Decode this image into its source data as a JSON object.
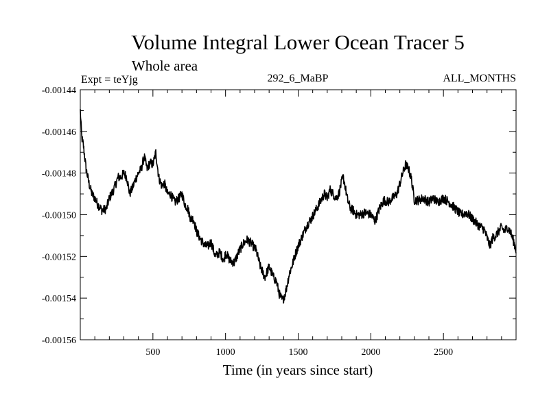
{
  "chart_data": {
    "type": "line",
    "title": "Volume Integral Lower Ocean Tracer 5",
    "subtitle": "Whole area",
    "header_left": "Expt = teYjg",
    "header_center": "292_6_MaBP",
    "header_right": "ALL_MONTHS",
    "xlabel": "Time (in years since start)",
    "ylabel": "",
    "xlim": [
      0,
      3000
    ],
    "ylim": [
      -0.00156,
      -0.00144
    ],
    "x_ticks": [
      500,
      1000,
      1500,
      2000,
      2500
    ],
    "x_tick_labels": [
      "500",
      "1000",
      "1500",
      "2000",
      "2500"
    ],
    "y_ticks": [
      -0.00144,
      -0.00146,
      -0.00148,
      -0.0015,
      -0.00152,
      -0.00154,
      -0.00156
    ],
    "y_tick_labels": [
      "-0.00144",
      "-0.00146",
      "-0.00148",
      "-0.00150",
      "-0.00152",
      "-0.00154",
      "-0.00156"
    ],
    "grid": false,
    "series": [
      {
        "name": "Volume Integral Lower Ocean Tracer 5",
        "color": "#000000",
        "x": [
          0,
          10,
          20,
          40,
          60,
          80,
          100,
          120,
          150,
          180,
          200,
          230,
          260,
          280,
          300,
          320,
          340,
          360,
          380,
          400,
          420,
          440,
          460,
          480,
          500,
          520,
          540,
          560,
          580,
          600,
          620,
          650,
          680,
          700,
          720,
          740,
          760,
          780,
          800,
          830,
          860,
          880,
          900,
          930,
          960,
          990,
          1000,
          1030,
          1060,
          1090,
          1120,
          1150,
          1180,
          1210,
          1240,
          1270,
          1300,
          1330,
          1350,
          1370,
          1390,
          1400,
          1410,
          1420,
          1440,
          1460,
          1480,
          1500,
          1530,
          1560,
          1590,
          1620,
          1650,
          1680,
          1700,
          1720,
          1740,
          1760,
          1780,
          1800,
          1810,
          1820,
          1840,
          1860,
          1880,
          1900,
          1930,
          1960,
          2000,
          2030,
          2060,
          2090,
          2120,
          2150,
          2180,
          2200,
          2220,
          2240,
          2260,
          2280,
          2300,
          2330,
          2360,
          2400,
          2430,
          2460,
          2500,
          2540,
          2580,
          2620,
          2660,
          2700,
          2740,
          2780,
          2800,
          2820,
          2840,
          2860,
          2880,
          2900,
          2920,
          2940,
          2960,
          2980,
          3000
        ],
        "y": [
          -0.00145,
          -0.001463,
          -0.001466,
          -0.001478,
          -0.001485,
          -0.00149,
          -0.001492,
          -0.001495,
          -0.001498,
          -0.001497,
          -0.001492,
          -0.001488,
          -0.001482,
          -0.001482,
          -0.00148,
          -0.001482,
          -0.00149,
          -0.001487,
          -0.001483,
          -0.00148,
          -0.001478,
          -0.001472,
          -0.001478,
          -0.001475,
          -0.001476,
          -0.00147,
          -0.001482,
          -0.001486,
          -0.001485,
          -0.00149,
          -0.00149,
          -0.001494,
          -0.001492,
          -0.00149,
          -0.001495,
          -0.001497,
          -0.001502,
          -0.001502,
          -0.001508,
          -0.001512,
          -0.001515,
          -0.001515,
          -0.001513,
          -0.00152,
          -0.001518,
          -0.001522,
          -0.001518,
          -0.001522,
          -0.001523,
          -0.001518,
          -0.001514,
          -0.001512,
          -0.001514,
          -0.001517,
          -0.001525,
          -0.00153,
          -0.001525,
          -0.00153,
          -0.001532,
          -0.001538,
          -0.001541,
          -0.00154,
          -0.001538,
          -0.001535,
          -0.001528,
          -0.001524,
          -0.001519,
          -0.001515,
          -0.00151,
          -0.001505,
          -0.001502,
          -0.001498,
          -0.001494,
          -0.00149,
          -0.001492,
          -0.001488,
          -0.00149,
          -0.001492,
          -0.00149,
          -0.001484,
          -0.001482,
          -0.001485,
          -0.001493,
          -0.001497,
          -0.001498,
          -0.0015,
          -0.0015,
          -0.001499,
          -0.0015,
          -0.001503,
          -0.001497,
          -0.001493,
          -0.001494,
          -0.001492,
          -0.00149,
          -0.001485,
          -0.00148,
          -0.001476,
          -0.001478,
          -0.001483,
          -0.001493,
          -0.001493,
          -0.001492,
          -0.001494,
          -0.001492,
          -0.001494,
          -0.001492,
          -0.001494,
          -0.001497,
          -0.0015,
          -0.001499,
          -0.001502,
          -0.001505,
          -0.001507,
          -0.001511,
          -0.001515,
          -0.001511,
          -0.00151,
          -0.001508,
          -0.001506,
          -0.001508,
          -0.001506,
          -0.001508,
          -0.001512,
          -0.001517
        ]
      }
    ]
  }
}
